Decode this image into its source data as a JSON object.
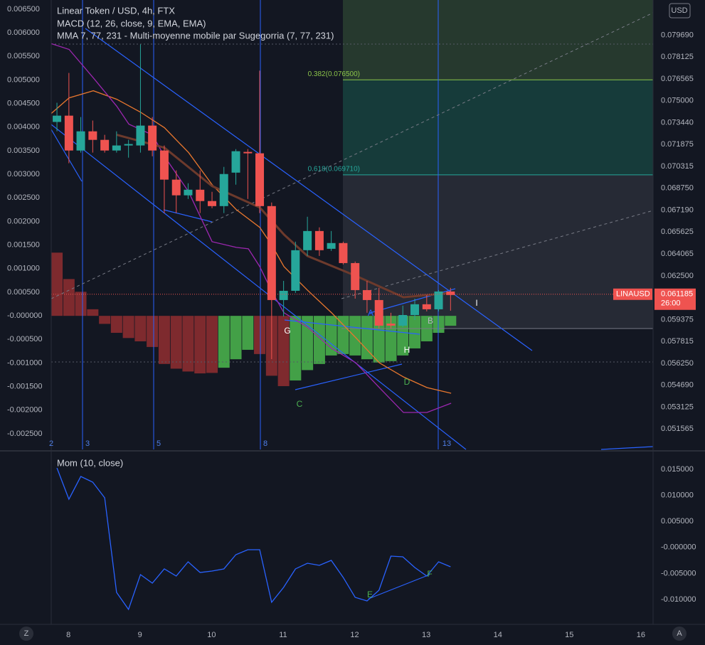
{
  "chart_data": [
    {
      "type": "candlestick",
      "title": "Linear Token / USD, 4h, FTX",
      "overlay_title": "MMA 7, 77, 231 - Multi-moyenne mobile par Sugegorria (7, 77, 231)",
      "currency": "USD",
      "symbol": "LINAUSD",
      "last_price": 0.061185,
      "countdown": "26:00",
      "up_color": "#26a69a",
      "down_color": "#ef5350",
      "x": [
        7.84,
        8.007,
        8.173,
        8.34,
        8.507,
        8.673,
        8.84,
        9.007,
        9.173,
        9.34,
        9.507,
        9.673,
        9.84,
        10.007,
        10.173,
        10.34,
        10.507,
        10.673,
        10.84,
        11.007,
        11.173,
        11.34,
        11.507,
        11.673,
        11.84,
        12.007,
        12.173,
        12.34,
        12.507,
        12.673,
        12.84,
        13.007,
        13.173,
        13.34
      ],
      "candles": [
        {
          "open": 0.07349,
          "high": 0.07486,
          "low": 0.07282,
          "close": 0.07394
        },
        {
          "open": 0.07394,
          "high": 0.07699,
          "low": 0.07054,
          "close": 0.07145
        },
        {
          "open": 0.07145,
          "high": 0.07384,
          "low": 0.0713,
          "close": 0.07282
        },
        {
          "open": 0.07282,
          "high": 0.07359,
          "low": 0.0713,
          "close": 0.07221
        },
        {
          "open": 0.07221,
          "high": 0.07257,
          "low": 0.0713,
          "close": 0.07145
        },
        {
          "open": 0.07145,
          "high": 0.07282,
          "low": 0.0713,
          "close": 0.07181
        },
        {
          "open": 0.07181,
          "high": 0.07221,
          "low": 0.07094,
          "close": 0.07191
        },
        {
          "open": 0.07181,
          "high": 0.07903,
          "low": 0.0713,
          "close": 0.07323
        },
        {
          "open": 0.07323,
          "high": 0.07384,
          "low": 0.07104,
          "close": 0.07145
        },
        {
          "open": 0.07145,
          "high": 0.07181,
          "low": 0.06698,
          "close": 0.06937
        },
        {
          "open": 0.06937,
          "high": 0.07003,
          "low": 0.06698,
          "close": 0.06825
        },
        {
          "open": 0.06825,
          "high": 0.06911,
          "low": 0.06799,
          "close": 0.06865
        },
        {
          "open": 0.06865,
          "high": 0.07003,
          "low": 0.06698,
          "close": 0.06784
        },
        {
          "open": 0.06784,
          "high": 0.0685,
          "low": 0.06733,
          "close": 0.06748
        },
        {
          "open": 0.06748,
          "high": 0.07028,
          "low": 0.06698,
          "close": 0.06977
        },
        {
          "open": 0.06987,
          "high": 0.07155,
          "low": 0.06901,
          "close": 0.0714
        },
        {
          "open": 0.07135,
          "high": 0.07155,
          "low": 0.06799,
          "close": 0.07125
        },
        {
          "open": 0.07125,
          "high": 0.07715,
          "low": 0.06698,
          "close": 0.06748
        },
        {
          "open": 0.06748,
          "high": 0.06774,
          "low": 0.05655,
          "close": 0.06077
        },
        {
          "open": 0.06077,
          "high": 0.06214,
          "low": 0.0596,
          "close": 0.06143
        },
        {
          "open": 0.06143,
          "high": 0.06494,
          "low": 0.06128,
          "close": 0.06433
        },
        {
          "open": 0.06433,
          "high": 0.06672,
          "low": 0.06392,
          "close": 0.0657
        },
        {
          "open": 0.0657,
          "high": 0.06596,
          "low": 0.06392,
          "close": 0.06433
        },
        {
          "open": 0.06443,
          "high": 0.0657,
          "low": 0.06428,
          "close": 0.06484
        },
        {
          "open": 0.06484,
          "high": 0.06494,
          "low": 0.06331,
          "close": 0.06341
        },
        {
          "open": 0.06341,
          "high": 0.06352,
          "low": 0.06087,
          "close": 0.06148
        },
        {
          "open": 0.06148,
          "high": 0.06214,
          "low": 0.05986,
          "close": 0.06077
        },
        {
          "open": 0.06077,
          "high": 0.06164,
          "low": 0.05874,
          "close": 0.05894
        },
        {
          "open": 0.05909,
          "high": 0.05986,
          "low": 0.05874,
          "close": 0.05894
        },
        {
          "open": 0.05894,
          "high": 0.06037,
          "low": 0.05884,
          "close": 0.0597
        },
        {
          "open": 0.0597,
          "high": 0.06087,
          "low": 0.05935,
          "close": 0.06047
        },
        {
          "open": 0.06047,
          "high": 0.06113,
          "low": 0.05996,
          "close": 0.06011
        },
        {
          "open": 0.06011,
          "high": 0.06148,
          "low": 0.05996,
          "close": 0.06138
        },
        {
          "open": 0.06138,
          "high": 0.06164,
          "low": 0.06001,
          "close": 0.06113
        }
      ],
      "lines": [
        {
          "color": "#e8772e",
          "x": [
            7.761,
            8.01,
            8.348,
            8.676,
            9.004,
            9.342,
            9.68,
            10.008,
            10.346,
            10.674,
            10.843,
            11.012,
            11.34,
            11.678,
            12.016,
            12.344,
            12.682,
            13.01,
            13.348
          ],
          "values": [
            0.0741,
            0.07521,
            0.07572,
            0.07511,
            0.0742,
            0.07308,
            0.0713,
            0.06901,
            0.06723,
            0.06596,
            0.06469,
            0.06316,
            0.06148,
            0.05986,
            0.05808,
            0.05629,
            0.05528,
            0.05452,
            0.05411
          ]
        },
        {
          "color": "#9c27b0",
          "x": [
            7.761,
            8.01,
            8.348,
            8.676,
            8.845,
            9.173,
            9.342,
            9.68,
            10.008,
            10.346,
            10.515,
            10.674,
            10.843,
            11.012,
            11.34,
            11.678,
            12.016,
            12.344,
            12.682,
            13.01,
            13.348
          ],
          "values": [
            0.07908,
            0.07867,
            0.07664,
            0.07461,
            0.07333,
            0.07257,
            0.07104,
            0.0685,
            0.06494,
            0.06453,
            0.06443,
            0.06316,
            0.06138,
            0.05986,
            0.05884,
            0.05732,
            0.05629,
            0.05452,
            0.05274,
            0.05274,
            0.0534
          ]
        },
        {
          "color": "#6d3a2c",
          "x": [
            8.676,
            9.342,
            10.008,
            10.674,
            11.012,
            11.34,
            12.016,
            12.682,
            13.348
          ],
          "values": [
            0.07257,
            0.07165,
            0.06891,
            0.06738,
            0.06545,
            0.06392,
            0.0625,
            0.06097,
            0.06128
          ]
        }
      ],
      "fib_levels": [
        {
          "value": 0.0765,
          "label": "0.382(0.076500)"
        },
        {
          "value": 0.06971,
          "label": "0.618(0.069710)"
        }
      ],
      "xlim": [
        7.76,
        16.17
      ],
      "xticks": [
        8,
        9,
        10,
        11,
        12,
        13,
        14,
        15,
        16
      ],
      "ylim": [
        0.0501,
        0.0822
      ],
      "yticks": [
        {
          "value": 0.07969,
          "label": "0.079690"
        },
        {
          "value": 0.078125,
          "label": "0.078125"
        },
        {
          "value": 0.076565,
          "label": "0.076565"
        },
        {
          "value": 0.075,
          "label": "0.075000"
        },
        {
          "value": 0.07344,
          "label": "0.073440"
        },
        {
          "value": 0.071875,
          "label": "0.071875"
        },
        {
          "value": 0.070315,
          "label": "0.070315"
        },
        {
          "value": 0.06875,
          "label": "0.068750"
        },
        {
          "value": 0.06719,
          "label": "0.067190"
        },
        {
          "value": 0.065625,
          "label": "0.065625"
        },
        {
          "value": 0.064065,
          "label": "0.064065"
        },
        {
          "value": 0.0625,
          "label": "0.062500"
        },
        {
          "value": 0.059375,
          "label": "0.059375"
        },
        {
          "value": 0.057815,
          "label": "0.057815"
        },
        {
          "value": 0.05625,
          "label": "0.056250"
        },
        {
          "value": 0.05469,
          "label": "0.054690"
        },
        {
          "value": 0.053125,
          "label": "0.053125"
        },
        {
          "value": 0.051565,
          "label": "0.051565"
        }
      ]
    },
    {
      "type": "bar",
      "title": "MACD (12, 26, close, 9, EMA, EMA)",
      "values": [
        0.00134,
        0.00078,
        0.00051,
        0.00014,
        -0.00017,
        -0.00036,
        -0.00047,
        -0.00054,
        -0.00066,
        -0.00102,
        -0.00112,
        -0.00118,
        -0.00122,
        -0.00121,
        -0.0011,
        -0.00092,
        -0.00072,
        -0.00081,
        -0.00127,
        -0.00149,
        -0.00137,
        -0.00115,
        -0.00102,
        -0.00084,
        -0.00081,
        -0.00084,
        -0.00092,
        -0.00099,
        -0.00096,
        -0.00084,
        -0.00069,
        -0.00054,
        -0.00036,
        -0.00021
      ],
      "colors": [
        "#7e2a2e",
        "#7e2a2e",
        "#7e2a2e",
        "#7e2a2e",
        "#7e2a2e",
        "#7e2a2e",
        "#7e2a2e",
        "#7e2a2e",
        "#7e2a2e",
        "#7e2a2e",
        "#7e2a2e",
        "#7e2a2e",
        "#7e2a2e",
        "#7e2a2e",
        "#43a047",
        "#43a047",
        "#43a047",
        "#7e2a2e",
        "#7e2a2e",
        "#7e2a2e",
        "#43a047",
        "#43a047",
        "#43a047",
        "#43a047",
        "#43a047",
        "#43a047",
        "#43a047",
        "#43a047",
        "#43a047",
        "#43a047",
        "#43a047",
        "#43a047",
        "#43a047",
        "#43a047"
      ],
      "ylim": [
        -0.002832,
        0.006696
      ],
      "yticks": [
        {
          "value": 0.0065,
          "label": "0.006500"
        },
        {
          "value": 0.006,
          "label": "0.006000"
        },
        {
          "value": 0.0055,
          "label": "0.005500"
        },
        {
          "value": 0.005,
          "label": "0.005000"
        },
        {
          "value": 0.0045,
          "label": "0.004500"
        },
        {
          "value": 0.004,
          "label": "0.004000"
        },
        {
          "value": 0.0035,
          "label": "0.003500"
        },
        {
          "value": 0.003,
          "label": "0.003000"
        },
        {
          "value": 0.0025,
          "label": "0.002500"
        },
        {
          "value": 0.002,
          "label": "0.002000"
        },
        {
          "value": 0.0015,
          "label": "0.001500"
        },
        {
          "value": 0.001,
          "label": "0.001000"
        },
        {
          "value": 0.0005,
          "label": "0.000500"
        },
        {
          "value": 0,
          "label": "-0.000000"
        },
        {
          "value": -0.0005,
          "label": "-0.000500"
        },
        {
          "value": -0.001,
          "label": "-0.001000"
        },
        {
          "value": -0.0015,
          "label": "-0.001500"
        },
        {
          "value": -0.002,
          "label": "-0.002000"
        },
        {
          "value": -0.0025,
          "label": "-0.002500"
        }
      ]
    },
    {
      "type": "line",
      "title": "Mom (10, close)",
      "color": "#2962ff",
      "values": [
        0.01527,
        0.00926,
        0.01363,
        0.01254,
        0.00954,
        -0.00863,
        -0.01191,
        -0.00522,
        -0.00686,
        -0.00412,
        -0.00549,
        -0.00276,
        -0.00481,
        -0.00453,
        -0.00412,
        -0.00139,
        -0.00044,
        -0.00044,
        -0.01054,
        -0.00768,
        -0.00412,
        -0.00303,
        -0.00344,
        -0.00248,
        -0.00576,
        -0.00959,
        -0.01027,
        -0.00822,
        -0.00167,
        -0.0018,
        -0.00385,
        -0.00549,
        -0.00276,
        -0.00371
      ],
      "ylim": [
        -0.01478,
        0.01828
      ],
      "yticks": [
        {
          "value": 0.015,
          "label": "0.015000"
        },
        {
          "value": 0.01,
          "label": "0.010000"
        },
        {
          "value": 0.005,
          "label": "0.005000"
        },
        {
          "value": 0,
          "label": "-0.000000"
        },
        {
          "value": -0.005,
          "label": "-0.005000"
        },
        {
          "value": -0.01,
          "label": "-0.010000"
        }
      ]
    }
  ],
  "cycle_labels": [
    "2",
    "3",
    "5",
    "8",
    "13"
  ],
  "annotations": [
    "A",
    "B",
    "C",
    "D",
    "E",
    "F",
    "G",
    "H",
    "I"
  ],
  "buttons": [
    "Z",
    "A"
  ]
}
